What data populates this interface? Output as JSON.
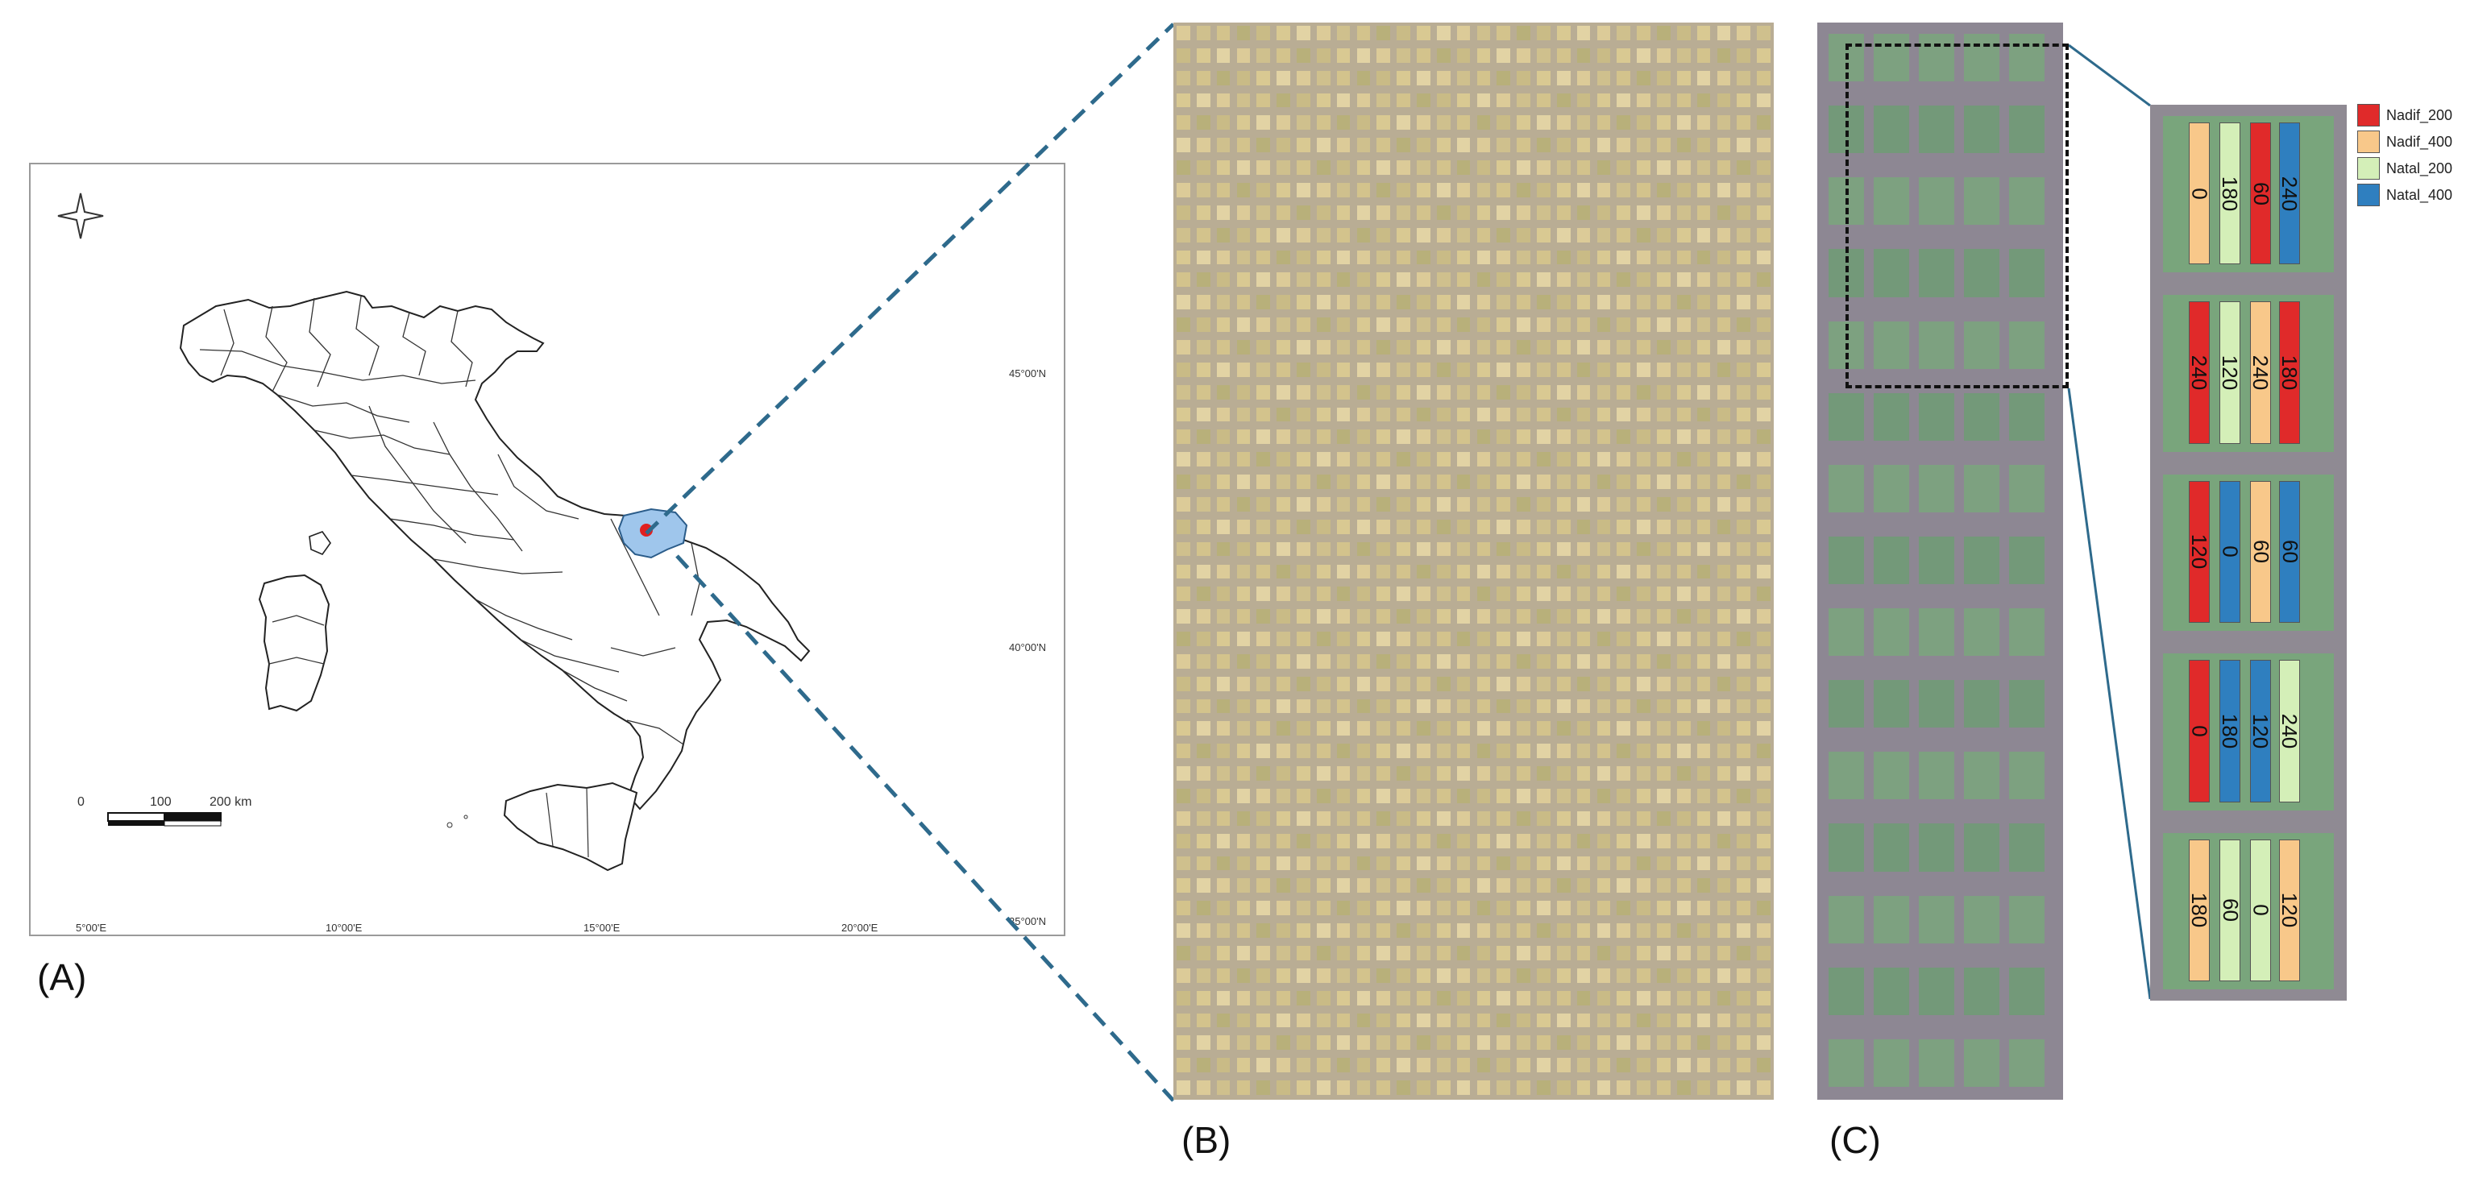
{
  "panel_labels": {
    "a": "(A)",
    "b": "(B)",
    "c": "(C)"
  },
  "map": {
    "latitude_labels": [
      "45°00'N",
      "40°00'N",
      "35°00'N"
    ],
    "longitude_labels": [
      "5°00'E",
      "10°00'E",
      "15°00'E",
      "20°00'E"
    ],
    "scale_bar": {
      "tick_0": "0",
      "tick_100": "100",
      "tick_200": "200 km"
    },
    "colors": {
      "highlight_region": "#9fc6ec",
      "site_marker": "#e02020",
      "connector": "#2e6a8c"
    },
    "north_arrow_icon": "compass-star-icon"
  },
  "legend": [
    {
      "label": "Nadif_200",
      "color": "#e02a2a"
    },
    {
      "label": "Nadif_400",
      "color": "#f8c88a"
    },
    {
      "label": "Natal_200",
      "color": "#d4efb8"
    },
    {
      "label": "Natal_400",
      "color": "#2f7fbf"
    }
  ],
  "plots": {
    "blocks": [
      [
        {
          "value": "0",
          "treatment": "Nadif_400"
        },
        {
          "value": "180",
          "treatment": "Natal_200"
        },
        {
          "value": "60",
          "treatment": "Nadif_200"
        },
        {
          "value": "240",
          "treatment": "Natal_400"
        }
      ],
      [
        {
          "value": "240",
          "treatment": "Nadif_200"
        },
        {
          "value": "120",
          "treatment": "Natal_200"
        },
        {
          "value": "240",
          "treatment": "Nadif_400"
        },
        {
          "value": "180",
          "treatment": "Nadif_200"
        }
      ],
      [
        {
          "value": "120",
          "treatment": "Nadif_200"
        },
        {
          "value": "0",
          "treatment": "Natal_400"
        },
        {
          "value": "60",
          "treatment": "Nadif_400"
        },
        {
          "value": "60",
          "treatment": "Natal_400"
        }
      ],
      [
        {
          "value": "0",
          "treatment": "Nadif_200"
        },
        {
          "value": "180",
          "treatment": "Natal_400"
        },
        {
          "value": "120",
          "treatment": "Natal_400"
        },
        {
          "value": "240",
          "treatment": "Natal_200"
        }
      ],
      [
        {
          "value": "180",
          "treatment": "Nadif_400"
        },
        {
          "value": "60",
          "treatment": "Natal_200"
        },
        {
          "value": "0",
          "treatment": "Natal_200"
        },
        {
          "value": "120",
          "treatment": "Nadif_400"
        }
      ]
    ]
  }
}
